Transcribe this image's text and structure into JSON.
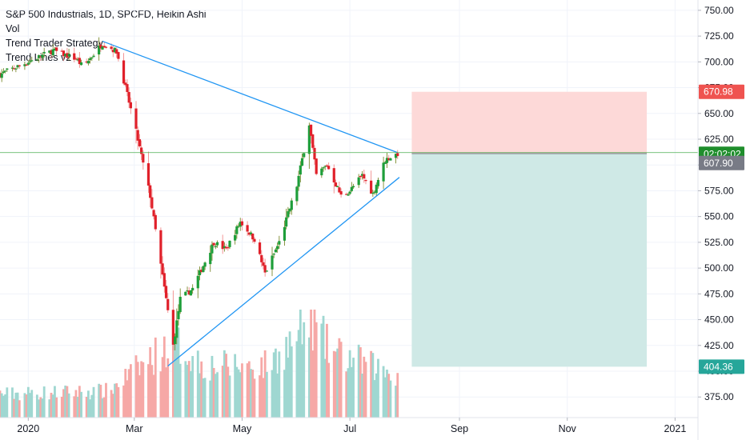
{
  "legend": {
    "symbol": "S&P 500 Industrials, 1D, SPCFD, Heikin Ashi",
    "vol": "Vol",
    "strategy": "Trend Trader Strategy",
    "indicator": "Trend Lines v2"
  },
  "colors": {
    "up": "#26a69a",
    "down": "#ef5350",
    "candle_up": "#1e9e3a",
    "candle_down": "#e0202a",
    "vol_up": "#9fd7d1",
    "vol_down": "#f6a8a6",
    "trendline": "#2196f3",
    "stop_zone": "#fdd9d8",
    "target_zone": "#cfe9e6",
    "price_line": "#4caf50"
  },
  "price_tags": {
    "stop": {
      "value": 670.98,
      "label": "670.98",
      "color": "#ef5350"
    },
    "countdown": {
      "value": 612,
      "label": "02:02:02",
      "color": "#1f8e2c"
    },
    "last": {
      "value": 607.9,
      "label": "607.90",
      "color": "#787b86"
    },
    "target": {
      "value": 404.36,
      "label": "404.36",
      "color": "#26a69a"
    }
  },
  "chart_data": {
    "type": "candlestick",
    "y_axis": {
      "range": [
        355,
        760
      ],
      "ticks": [
        750,
        725,
        700,
        675,
        650,
        625,
        600,
        575,
        550,
        525,
        500,
        475,
        450,
        425,
        400,
        375
      ],
      "tick_labels": [
        "750.00",
        "725.00",
        "700.00",
        "675.00",
        "650.00",
        "625.00",
        "600.00",
        "575.00",
        "550.00",
        "525.00",
        "500.00",
        "475.00",
        "450.00",
        "425.00",
        "400.00",
        "375.00"
      ],
      "side": "right"
    },
    "x_axis": {
      "start": "2019-12-16",
      "end": "2021-01-04",
      "ticks": [
        {
          "date": "2020-01-01",
          "label": "2020"
        },
        {
          "date": "2020-03-01",
          "label": "Mar"
        },
        {
          "date": "2020-05-01",
          "label": "May"
        },
        {
          "date": "2020-07-01",
          "label": "Jul"
        },
        {
          "date": "2020-09-01",
          "label": "Sep"
        },
        {
          "date": "2020-11-01",
          "label": "Nov"
        },
        {
          "date": "2021-01-01",
          "label": "2021"
        }
      ]
    },
    "candle_keypoints": [
      {
        "date": "2019-12-16",
        "close": 688
      },
      {
        "date": "2020-01-01",
        "close": 700
      },
      {
        "date": "2020-01-15",
        "close": 711
      },
      {
        "date": "2020-01-28",
        "close": 703
      },
      {
        "date": "2020-02-01",
        "close": 695
      },
      {
        "date": "2020-02-12",
        "close": 718
      },
      {
        "date": "2020-02-20",
        "close": 710
      },
      {
        "date": "2020-03-01",
        "close": 640
      },
      {
        "date": "2020-03-10",
        "close": 570
      },
      {
        "date": "2020-03-23",
        "close": 425
      },
      {
        "date": "2020-03-27",
        "close": 470
      },
      {
        "date": "2020-04-03",
        "close": 480
      },
      {
        "date": "2020-04-15",
        "close": 525
      },
      {
        "date": "2020-04-22",
        "close": 518
      },
      {
        "date": "2020-04-30",
        "close": 545
      },
      {
        "date": "2020-05-08",
        "close": 528
      },
      {
        "date": "2020-05-14",
        "close": 495
      },
      {
        "date": "2020-05-22",
        "close": 525
      },
      {
        "date": "2020-06-01",
        "close": 580
      },
      {
        "date": "2020-06-08",
        "close": 640
      },
      {
        "date": "2020-06-12",
        "close": 590
      },
      {
        "date": "2020-06-18",
        "close": 600
      },
      {
        "date": "2020-06-26",
        "close": 570
      },
      {
        "date": "2020-07-01",
        "close": 575
      },
      {
        "date": "2020-07-08",
        "close": 590
      },
      {
        "date": "2020-07-14",
        "close": 572
      },
      {
        "date": "2020-07-21",
        "close": 605
      },
      {
        "date": "2020-07-28",
        "close": 611
      }
    ],
    "volume_keypoints": [
      {
        "date": "2019-12-16",
        "height": 0.25
      },
      {
        "date": "2020-02-15",
        "height": 0.28
      },
      {
        "date": "2020-03-05",
        "height": 0.55
      },
      {
        "date": "2020-03-23",
        "height": 0.8
      },
      {
        "date": "2020-04-10",
        "height": 0.55
      },
      {
        "date": "2020-05-15",
        "height": 0.55
      },
      {
        "date": "2020-06-10",
        "height": 1.0
      },
      {
        "date": "2020-06-20",
        "height": 0.7
      },
      {
        "date": "2020-07-28",
        "height": 0.45
      }
    ],
    "trendlines": [
      {
        "name": "upper",
        "from": {
          "date": "2020-02-12",
          "value": 720
        },
        "to": {
          "date": "2020-07-28",
          "value": 612
        }
      },
      {
        "name": "lower",
        "from": {
          "date": "2020-03-20",
          "value": 405
        },
        "to": {
          "date": "2020-07-29",
          "value": 588
        }
      }
    ],
    "position": {
      "start": "2020-08-05",
      "end": "2020-12-16",
      "entry": 611,
      "stop": 670.98,
      "target": 404.36
    },
    "last_price": 612
  }
}
